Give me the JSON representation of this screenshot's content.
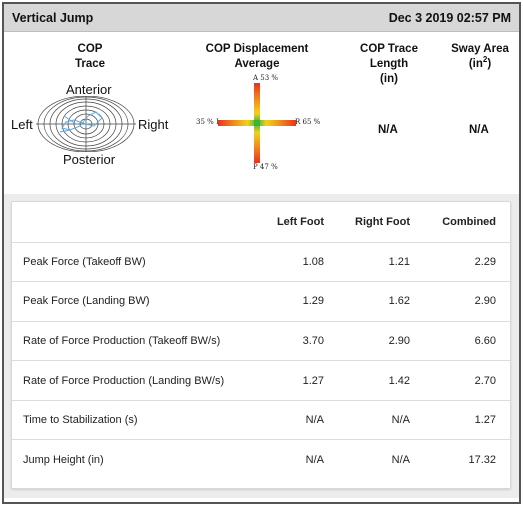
{
  "title": "Vertical Jump",
  "timestamp": "Dec 3 2019 02:57 PM",
  "cop_trace": {
    "heading": "COP Trace",
    "anterior": "Anterior",
    "posterior": "Posterior",
    "left": "Left",
    "right": "Right"
  },
  "cop_displacement": {
    "heading": "COP Displacement Average",
    "anterior": "A 53 %",
    "posterior": "P 47 %",
    "left": "35 % L",
    "right": "R 65 %"
  },
  "cop_trace_length": {
    "heading_line1": "COP Trace Length",
    "heading_line2": "(in)",
    "value": "N/A"
  },
  "sway_area": {
    "heading_line1": "Sway Area",
    "heading_unit": "(in",
    "heading_sup": "2",
    "heading_close": ")",
    "value": "N/A"
  },
  "table": {
    "headers": [
      "",
      "Left Foot",
      "Right Foot",
      "Combined"
    ],
    "rows": [
      {
        "label": "Peak Force (Takeoff BW)",
        "left": "1.08",
        "right": "1.21",
        "combined": "2.29"
      },
      {
        "label": "Peak Force (Landing BW)",
        "left": "1.29",
        "right": "1.62",
        "combined": "2.90"
      },
      {
        "label": "Rate of Force Production (Takeoff BW/s)",
        "left": "3.70",
        "right": "2.90",
        "combined": "6.60"
      },
      {
        "label": "Rate of Force Production (Landing BW/s)",
        "left": "1.27",
        "right": "1.42",
        "combined": "2.70"
      },
      {
        "label": "Time to Stabilization (s)",
        "left": "N/A",
        "right": "N/A",
        "combined": "1.27"
      },
      {
        "label": "Jump Height (in)",
        "left": "N/A",
        "right": "N/A",
        "combined": "17.32"
      }
    ]
  },
  "colors": {
    "titlebar": "#d7d7d7",
    "trace_blue": "#5aa9e6",
    "heat_green": "#3cb43c",
    "heat_red": "#e8331e"
  },
  "icons": {
    "cop_trace": "concentric-ring-target",
    "cop_displacement": "heatmap-cross"
  }
}
